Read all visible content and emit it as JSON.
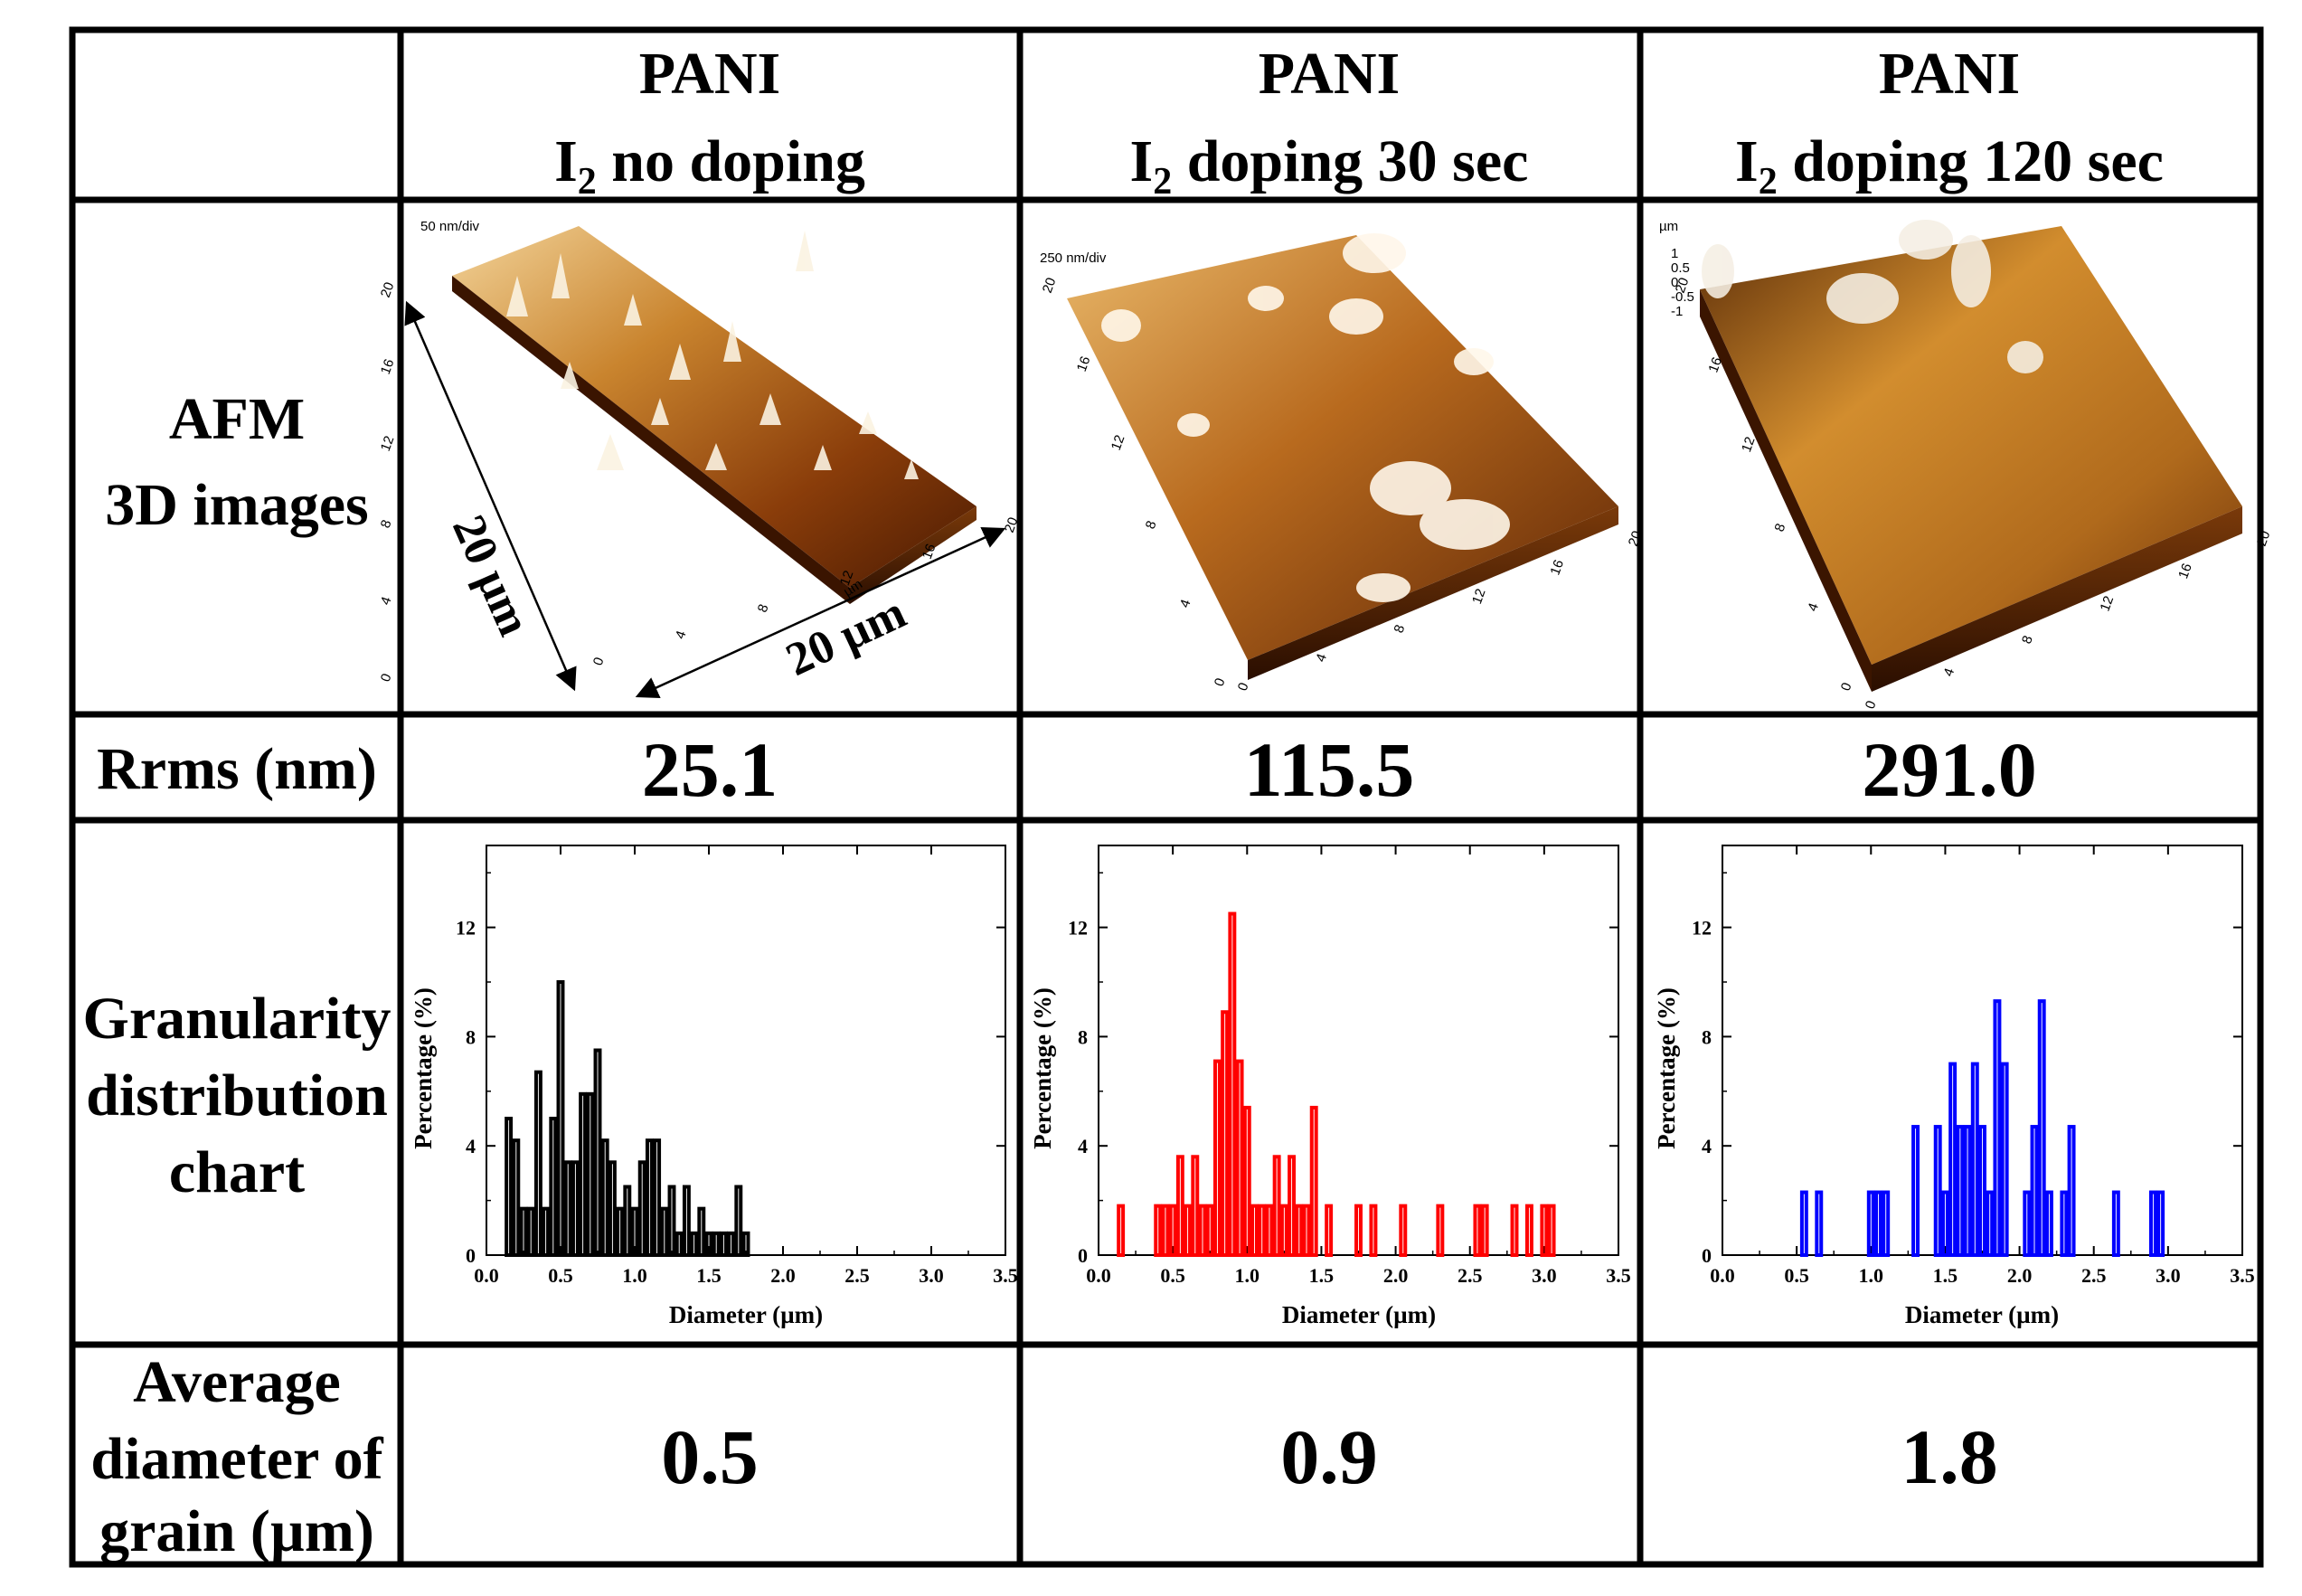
{
  "table": {
    "header": {
      "col1": {
        "line1": "PANI",
        "line2_prefix": "I",
        "sub": "2",
        "line2_suffix": " no doping"
      },
      "col2": {
        "line1": "PANI",
        "line2_prefix": "I",
        "sub": "2",
        "line2_suffix": " doping 30 sec"
      },
      "col3": {
        "line1": "PANI",
        "line2_prefix": "I",
        "sub": "2",
        "line2_suffix": " doping 120 sec"
      }
    },
    "row_labels": {
      "afm": [
        "AFM",
        "3D images"
      ],
      "rrms": "Rrms (nm)",
      "granularity": [
        "Granularity",
        "distribution",
        "chart"
      ],
      "average": [
        "Average",
        "diameter of",
        "grain (µm)"
      ]
    },
    "rrms_values": [
      "25.1",
      "115.5",
      "291.0"
    ],
    "average_values": [
      "0.5",
      "0.9",
      "1.8"
    ]
  },
  "afm": {
    "panels": [
      {
        "zscale": "50 nm/div",
        "axis_unit": "µm",
        "ticks": [
          "0",
          "4",
          "8",
          "12",
          "16",
          "20"
        ],
        "y_ticks": [
          "0",
          "4",
          "8",
          "12",
          "16",
          "20"
        ]
      },
      {
        "zscale": "250 nm/div",
        "axis_unit": "µm",
        "ticks": [
          "0",
          "4",
          "8",
          "12",
          "16",
          "20"
        ],
        "y_ticks": [
          "0",
          "4",
          "8",
          "12",
          "16",
          "20"
        ]
      },
      {
        "zscale": "µm",
        "z_ticks": [
          "1",
          "0.5",
          "0",
          "-0.5",
          "-1"
        ],
        "axis_unit": "µm",
        "ticks": [
          "0",
          "4",
          "8",
          "12",
          "16",
          "20"
        ],
        "y_ticks": [
          "0",
          "4",
          "8",
          "12",
          "16",
          "20"
        ]
      }
    ],
    "dimension_x": "20 µm",
    "dimension_y": "20 µm"
  },
  "chart_data": [
    {
      "type": "bar",
      "series_name": "PANI I2 no doping",
      "color": "#000000",
      "xlabel": "Diameter (µm)",
      "ylabel": "Percentage (%)",
      "xlim": [
        0.0,
        3.5
      ],
      "ylim": [
        0,
        15
      ],
      "xticks": [
        "0.0",
        "0.5",
        "1.0",
        "1.5",
        "2.0",
        "2.5",
        "3.0",
        "3.5"
      ],
      "yticks": [
        "0",
        "4",
        "8",
        "12"
      ],
      "x": [
        0.15,
        0.2,
        0.25,
        0.3,
        0.35,
        0.4,
        0.45,
        0.5,
        0.55,
        0.6,
        0.65,
        0.7,
        0.75,
        0.8,
        0.85,
        0.9,
        0.95,
        1.0,
        1.05,
        1.1,
        1.15,
        1.2,
        1.25,
        1.3,
        1.35,
        1.4,
        1.45,
        1.5,
        1.55,
        1.6,
        1.65,
        1.7,
        1.75
      ],
      "values": [
        5.0,
        4.2,
        1.7,
        1.7,
        6.7,
        1.7,
        5.0,
        10.0,
        3.4,
        3.4,
        5.9,
        5.9,
        7.5,
        4.2,
        3.4,
        1.7,
        2.5,
        1.7,
        3.4,
        4.2,
        4.2,
        1.7,
        2.5,
        0.8,
        2.5,
        0.8,
        1.7,
        0.8,
        0.8,
        0.8,
        0.8,
        2.5,
        0.8
      ]
    },
    {
      "type": "bar",
      "series_name": "PANI I2 doping 30 sec",
      "color": "#ff0000",
      "xlabel": "Diameter (µm)",
      "ylabel": "Percentage (%)",
      "xlim": [
        0.0,
        3.5
      ],
      "ylim": [
        0,
        15
      ],
      "xticks": [
        "0.0",
        "0.5",
        "1.0",
        "1.5",
        "2.0",
        "2.5",
        "3.0",
        "3.5"
      ],
      "yticks": [
        "0",
        "4",
        "8",
        "12"
      ],
      "x": [
        0.15,
        0.4,
        0.45,
        0.5,
        0.55,
        0.6,
        0.65,
        0.7,
        0.75,
        0.8,
        0.85,
        0.9,
        0.95,
        1.0,
        1.05,
        1.1,
        1.15,
        1.2,
        1.25,
        1.3,
        1.35,
        1.4,
        1.45,
        1.55,
        1.75,
        1.85,
        2.05,
        2.3,
        2.55,
        2.6,
        2.8,
        2.9,
        3.0,
        3.05
      ],
      "values": [
        1.8,
        1.8,
        1.8,
        1.8,
        3.6,
        1.8,
        3.6,
        1.8,
        1.8,
        7.1,
        8.9,
        12.5,
        7.1,
        5.4,
        1.8,
        1.8,
        1.8,
        3.6,
        1.8,
        3.6,
        1.8,
        1.8,
        5.4,
        1.8,
        1.8,
        1.8,
        1.8,
        1.8,
        1.8,
        1.8,
        1.8,
        1.8,
        1.8,
        1.8
      ]
    },
    {
      "type": "bar",
      "series_name": "PANI I2 doping 120 sec",
      "color": "#0000ff",
      "xlabel": "Diameter (µm)",
      "ylabel": "Percentage (%)",
      "xlim": [
        0.0,
        3.5
      ],
      "ylim": [
        0,
        15
      ],
      "xticks": [
        "0.0",
        "0.5",
        "1.0",
        "1.5",
        "2.0",
        "2.5",
        "3.0",
        "3.5"
      ],
      "yticks": [
        "0",
        "4",
        "8",
        "12"
      ],
      "x": [
        0.55,
        0.65,
        1.0,
        1.05,
        1.1,
        1.3,
        1.45,
        1.5,
        1.55,
        1.6,
        1.65,
        1.7,
        1.75,
        1.8,
        1.85,
        1.9,
        2.05,
        2.1,
        2.15,
        2.2,
        2.3,
        2.35,
        2.65,
        2.9,
        2.95
      ],
      "values": [
        2.3,
        2.3,
        2.3,
        2.3,
        2.3,
        4.7,
        4.7,
        2.3,
        7.0,
        4.7,
        4.7,
        7.0,
        4.7,
        2.3,
        9.3,
        7.0,
        2.3,
        4.7,
        9.3,
        2.3,
        2.3,
        4.7,
        2.3,
        2.3,
        2.3
      ]
    }
  ]
}
